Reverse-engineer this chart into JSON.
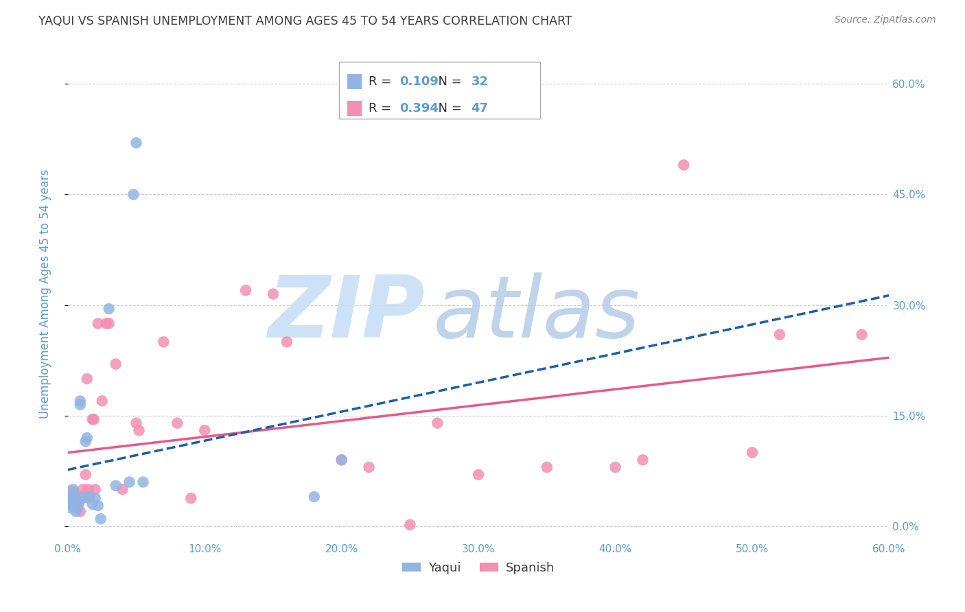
{
  "title": "YAQUI VS SPANISH UNEMPLOYMENT AMONG AGES 45 TO 54 YEARS CORRELATION CHART",
  "source": "Source: ZipAtlas.com",
  "ylabel": "Unemployment Among Ages 45 to 54 years",
  "xlim": [
    0.0,
    0.6
  ],
  "ylim": [
    -0.02,
    0.65
  ],
  "yaqui_R": "0.109",
  "yaqui_N": "32",
  "spanish_R": "0.394",
  "spanish_N": "47",
  "yaqui_color": "#92b4e3",
  "spanish_color": "#f48fb1",
  "trend_yaqui_color": "#1a5fa8",
  "trend_spanish_color": "#e8588a",
  "r_color": "#5b9bd5",
  "background_color": "#ffffff",
  "grid_color": "#cccccc",
  "title_color": "#404040",
  "axis_label_color": "#5b9bd5",
  "tick_label_color": "#5b9bd5",
  "watermark_zip_color": "#c8dff5",
  "watermark_atlas_color": "#b8cfe8",
  "yaqui_x": [
    0.001,
    0.001,
    0.002,
    0.003,
    0.003,
    0.004,
    0.004,
    0.005,
    0.006,
    0.006,
    0.007,
    0.008,
    0.009,
    0.009,
    0.01,
    0.011,
    0.013,
    0.014,
    0.015,
    0.016,
    0.018,
    0.02,
    0.022,
    0.024,
    0.03,
    0.035,
    0.045,
    0.048,
    0.05,
    0.055,
    0.18,
    0.2
  ],
  "yaqui_y": [
    0.03,
    0.04,
    0.025,
    0.03,
    0.04,
    0.04,
    0.05,
    0.04,
    0.025,
    0.02,
    0.025,
    0.03,
    0.165,
    0.17,
    0.038,
    0.038,
    0.115,
    0.12,
    0.04,
    0.04,
    0.03,
    0.038,
    0.028,
    0.01,
    0.295,
    0.055,
    0.06,
    0.45,
    0.52,
    0.06,
    0.04,
    0.09
  ],
  "spanish_x": [
    0.001,
    0.002,
    0.002,
    0.003,
    0.004,
    0.005,
    0.005,
    0.006,
    0.007,
    0.008,
    0.009,
    0.01,
    0.011,
    0.013,
    0.014,
    0.015,
    0.016,
    0.018,
    0.019,
    0.02,
    0.022,
    0.025,
    0.028,
    0.03,
    0.035,
    0.04,
    0.05,
    0.052,
    0.07,
    0.08,
    0.09,
    0.1,
    0.13,
    0.15,
    0.16,
    0.2,
    0.22,
    0.25,
    0.27,
    0.3,
    0.35,
    0.4,
    0.42,
    0.45,
    0.5,
    0.52,
    0.58
  ],
  "spanish_y": [
    0.04,
    0.038,
    0.048,
    0.04,
    0.038,
    0.046,
    0.038,
    0.038,
    0.03,
    0.038,
    0.02,
    0.04,
    0.05,
    0.07,
    0.2,
    0.05,
    0.038,
    0.145,
    0.145,
    0.05,
    0.275,
    0.17,
    0.275,
    0.275,
    0.22,
    0.05,
    0.14,
    0.13,
    0.25,
    0.14,
    0.038,
    0.13,
    0.32,
    0.315,
    0.25,
    0.09,
    0.08,
    0.002,
    0.14,
    0.07,
    0.08,
    0.08,
    0.09,
    0.49,
    0.1,
    0.26,
    0.26
  ]
}
